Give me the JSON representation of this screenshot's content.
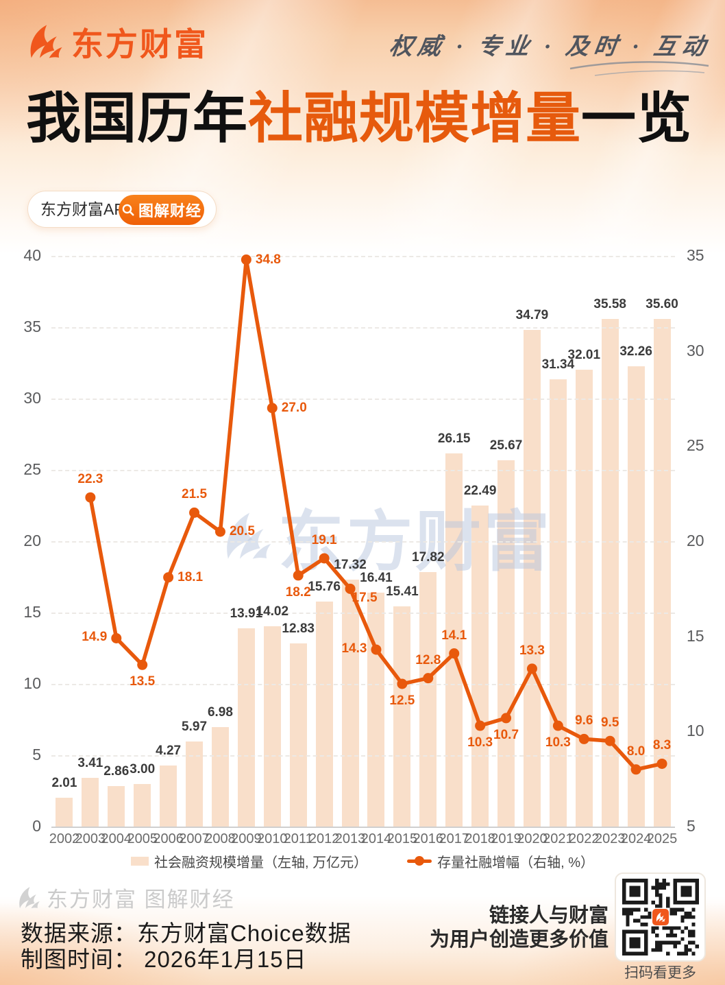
{
  "header": {
    "brand": "东方财富",
    "slogan": "权威 · 专业 · 及时 · 互动"
  },
  "title": {
    "prefix": "我国历年",
    "highlight": "社融规模增量",
    "suffix": "一览"
  },
  "promo": {
    "app_label": "东方财富APP",
    "search_label": "图解财经"
  },
  "chart_data": {
    "type": "bar+line",
    "title": "我国历年社融规模增量一览",
    "categories": [
      "2002",
      "2003",
      "2004",
      "2005",
      "2006",
      "2007",
      "2008",
      "2009",
      "2010",
      "2011",
      "2012",
      "2013",
      "2014",
      "2015",
      "2016",
      "2017",
      "2018",
      "2019",
      "2020",
      "2021",
      "2022",
      "2023",
      "2024",
      "2025"
    ],
    "series": [
      {
        "name": "社会融资规模增量（左轴, 万亿元）",
        "type": "bar",
        "axis": "left",
        "values": [
          2.01,
          3.41,
          2.86,
          3.0,
          4.27,
          5.97,
          6.98,
          13.91,
          14.02,
          12.83,
          15.76,
          17.32,
          16.41,
          15.41,
          17.82,
          26.15,
          22.49,
          25.67,
          34.79,
          31.34,
          32.01,
          35.58,
          32.26,
          35.6
        ],
        "value_labels": [
          "2.01",
          "3.41",
          "2.86",
          "3.00",
          "4.27",
          "5.97",
          "6.98",
          "13.91",
          "14.02",
          "12.83",
          "15.76",
          "17.32",
          "16.41",
          "15.41",
          "17.82",
          "26.15",
          "22.49",
          "25.67",
          "34.79",
          "31.34",
          "32.01",
          "35.58",
          "32.26",
          "35.60"
        ]
      },
      {
        "name": "存量社融增幅（右轴, %）",
        "type": "line",
        "axis": "right",
        "values": [
          null,
          22.3,
          14.9,
          13.5,
          18.1,
          21.5,
          20.5,
          34.8,
          27.0,
          18.2,
          19.1,
          17.5,
          14.3,
          12.5,
          12.8,
          14.1,
          10.3,
          10.7,
          13.3,
          10.3,
          9.6,
          9.5,
          8.0,
          8.3
        ],
        "value_labels": [
          null,
          "22.3",
          "14.9",
          "13.5",
          "18.1",
          "21.5",
          "20.5",
          "34.8",
          "27.0",
          "18.2",
          "19.1",
          "17.5",
          "14.3",
          "12.5",
          "12.8",
          "14.1",
          "10.3",
          "10.7",
          "13.3",
          "10.3",
          "9.6",
          "9.5",
          "8.0",
          "8.3"
        ],
        "label_positions": [
          null,
          "above",
          "left",
          "below",
          "right",
          "above",
          "right",
          "right",
          "right",
          "below",
          "above",
          "below-right",
          "left",
          "below",
          "above",
          "above",
          "below",
          "below",
          "above",
          "below",
          "above",
          "above",
          "above",
          "above"
        ]
      }
    ],
    "left_axis": {
      "min": 0,
      "max": 40,
      "step": 5
    },
    "right_axis": {
      "min": 5,
      "max": 35,
      "step": 5
    },
    "grid": "horizontal-dashed",
    "legend_position": "bottom"
  },
  "watermark": {
    "chart": "东方财富",
    "footer": "东方财富 图解财经"
  },
  "footer": {
    "source": "数据来源：东方财富Choice数据",
    "date": "制图时间： 2026年1月15日",
    "tagline_line1": "链接人与财富",
    "tagline_line2": "为用户创造更多价值",
    "qr_caption": "扫码看更多"
  },
  "colors": {
    "brand_orange": "#f0571c",
    "line_orange": "#e8590c",
    "bar_fill": "#f9dfca",
    "title_orange": "#e65a0d"
  }
}
